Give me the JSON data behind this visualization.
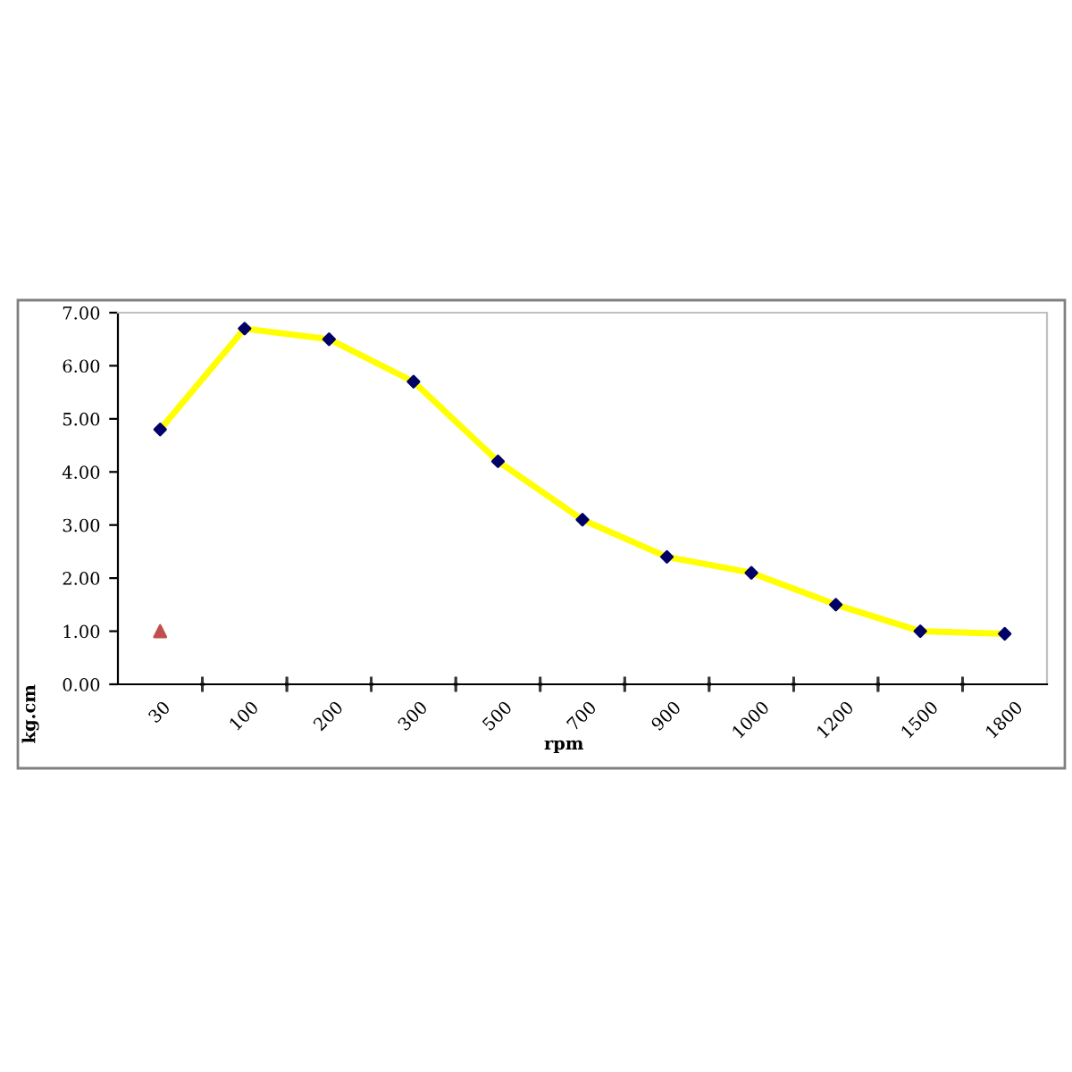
{
  "chart_data": {
    "type": "line",
    "xlabel": "rpm",
    "ylabel": "kg.cm",
    "categories": [
      "30",
      "100",
      "200",
      "300",
      "500",
      "700",
      "900",
      "1000",
      "1200",
      "1500",
      "1800"
    ],
    "series": [
      {
        "color": "#ffff00",
        "marker": "diamond",
        "colors": [
          "#000066",
          "#000066",
          "#000066",
          "#000066",
          "#000066",
          "#000066",
          "#000066",
          "#000066",
          "#000066",
          "#000066",
          "#000066"
        ],
        "values": [
          4.8,
          6.7,
          6.5,
          5.7,
          4.2,
          3.1,
          2.4,
          2.1,
          1.5,
          1.0,
          0.95
        ]
      },
      {
        "type": "scatter",
        "color": "#c0504d",
        "marker": "triangle",
        "values": [
          1.0,
          null,
          null,
          null,
          null,
          null,
          null,
          null,
          null,
          null,
          null
        ]
      }
    ],
    "ylim": [
      0,
      7
    ],
    "yticks": [
      {
        "value": 0,
        "label": "0.00"
      },
      {
        "value": 1,
        "label": "1.00"
      },
      {
        "value": 2,
        "label": "2.00"
      },
      {
        "value": 3,
        "label": "3.00"
      },
      {
        "value": 4,
        "label": "4.00"
      },
      {
        "value": 5,
        "label": "5.00"
      },
      {
        "value": 6,
        "label": "6.00"
      },
      {
        "value": 7,
        "label": "7.00"
      }
    ],
    "grid": false,
    "legend": false
  }
}
